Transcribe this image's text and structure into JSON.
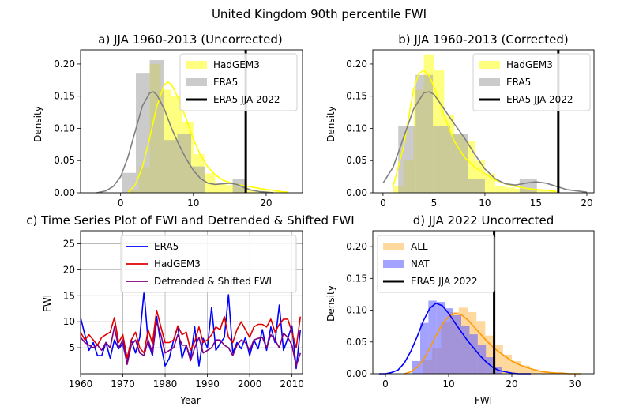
{
  "suptitle": "United Kingdom 90th percentile FWI",
  "colors": {
    "hadgem3": "#ffff00",
    "era5": "#808080",
    "era5_hist": "#a9a9a9",
    "obs_line": "#000000",
    "ts_era5": "#0000ff",
    "ts_hadgem3": "#e00000",
    "ts_detrended": "#800080",
    "all_hist": "#ffb84d",
    "all_kde": "#ff9900",
    "nat_hist": "#6666ff",
    "nat_kde": "#0000ff"
  },
  "chart_data": [
    {
      "id": "a",
      "type": "histogram-kde",
      "title": "a) JJA 1960-2013 (Uncorrected)",
      "xlabel": "",
      "ylabel": "Density",
      "xlim": [
        -5.5,
        25
      ],
      "ylim": [
        0,
        0.222
      ],
      "xticks": [
        0,
        10,
        20
      ],
      "yticks": [
        0.0,
        0.05,
        0.1,
        0.15,
        0.2
      ],
      "ytick_labels": [
        "0.00",
        "0.05",
        "0.10",
        "0.15",
        "0.20"
      ],
      "legend": [
        "HadGEM3",
        "ERA5",
        "ERA5 JJA 2022"
      ],
      "legend_position": "upper right",
      "observed_2022": 17.2,
      "hist_hadgem3": {
        "edges": [
          1,
          2.5,
          4,
          5.5,
          7,
          8.5,
          10,
          11.5,
          13,
          14.5,
          16,
          17.5,
          19,
          20.5,
          22
        ],
        "heights": [
          0.005,
          0.04,
          0.2,
          0.16,
          0.15,
          0.11,
          0.06,
          0.03,
          0.015,
          0.012,
          0.008,
          0.005,
          0.003,
          0.002
        ]
      },
      "hist_era5": {
        "edges": [
          0.2,
          2.1,
          4.0,
          5.9,
          7.8,
          9.7,
          11.6,
          13.5,
          15.4,
          17.3
        ],
        "heights": [
          0.031,
          0.185,
          0.206,
          0.082,
          0.092,
          0.041,
          0.0,
          0.0,
          0.021
        ]
      },
      "kde_hadgem3": {
        "x": [
          1,
          2,
          3,
          4,
          5,
          6,
          6.5,
          7,
          8,
          9,
          10,
          11,
          12,
          13,
          14,
          15,
          16,
          17,
          18,
          19,
          20,
          21,
          22,
          23
        ],
        "y": [
          0.0,
          0.012,
          0.04,
          0.085,
          0.135,
          0.168,
          0.172,
          0.168,
          0.145,
          0.115,
          0.083,
          0.058,
          0.04,
          0.028,
          0.02,
          0.016,
          0.013,
          0.011,
          0.009,
          0.007,
          0.005,
          0.004,
          0.002,
          0.001
        ]
      },
      "kde_era5": {
        "x": [
          -3.3,
          -2,
          -1,
          0,
          1,
          2,
          3,
          4,
          4.5,
          5,
          6,
          7,
          8,
          9,
          10,
          11,
          12,
          13,
          14,
          15,
          16,
          17,
          18,
          19,
          20,
          21
        ],
        "y": [
          0.0,
          0.003,
          0.01,
          0.025,
          0.055,
          0.095,
          0.135,
          0.155,
          0.157,
          0.152,
          0.13,
          0.1,
          0.075,
          0.053,
          0.035,
          0.022,
          0.015,
          0.013,
          0.014,
          0.015,
          0.013,
          0.008,
          0.004,
          0.002,
          0.001,
          0.0
        ]
      }
    },
    {
      "id": "b",
      "type": "histogram-kde",
      "title": "b) JJA 1960-2013 (Corrected)",
      "xlabel": "",
      "ylabel": "Density",
      "xlim": [
        -1,
        20.7
      ],
      "ylim": [
        0,
        0.222
      ],
      "xticks": [
        0,
        5,
        10,
        15,
        20
      ],
      "yticks": [
        0.0,
        0.05,
        0.1,
        0.15,
        0.2
      ],
      "ytick_labels": [
        "0.00",
        "0.05",
        "0.10",
        "0.15",
        "0.20"
      ],
      "legend": [
        "HadGEM3",
        "ERA5",
        "ERA5 JJA 2022"
      ],
      "legend_position": "upper right",
      "observed_2022": 17.2,
      "hist_hadgem3": {
        "edges": [
          1,
          2,
          3,
          4,
          5,
          6,
          7,
          8,
          9,
          10,
          11,
          12,
          13,
          14,
          15,
          16,
          17
        ],
        "heights": [
          0.01,
          0.05,
          0.16,
          0.215,
          0.19,
          0.12,
          0.09,
          0.08,
          0.05,
          0.03,
          0.01,
          0.008,
          0.006,
          0.005,
          0.004,
          0.002
        ]
      },
      "hist_era5": {
        "edges": [
          1.5,
          3.2,
          4.9,
          6.6,
          8.3,
          10.0,
          11.7,
          13.4,
          15.1
        ],
        "heights": [
          0.104,
          0.183,
          0.104,
          0.092,
          0.022,
          0.0,
          0.0,
          0.022
        ]
      },
      "kde_hadgem3": {
        "x": [
          1,
          2,
          3,
          3.5,
          4,
          4.5,
          5,
          6,
          7,
          8,
          9,
          10,
          11,
          12,
          13,
          14,
          15,
          16,
          17
        ],
        "y": [
          0.01,
          0.07,
          0.16,
          0.185,
          0.19,
          0.182,
          0.165,
          0.12,
          0.08,
          0.055,
          0.04,
          0.03,
          0.02,
          0.014,
          0.01,
          0.007,
          0.005,
          0.004,
          0.002
        ]
      },
      "kde_era5": {
        "x": [
          0,
          1,
          2,
          3,
          4,
          4.5,
          5,
          6,
          7,
          8,
          9,
          10,
          11,
          12,
          13,
          14,
          15,
          16,
          17,
          18,
          19,
          20
        ],
        "y": [
          0.015,
          0.04,
          0.085,
          0.13,
          0.155,
          0.157,
          0.153,
          0.13,
          0.107,
          0.085,
          0.06,
          0.037,
          0.022,
          0.014,
          0.012,
          0.015,
          0.017,
          0.015,
          0.01,
          0.005,
          0.003,
          0.001
        ]
      }
    },
    {
      "id": "c",
      "type": "line",
      "title": "c) Time Series Plot of FWI and Detrended & Shifted FWI",
      "xlabel": "Year",
      "ylabel": "FWI",
      "xlim": [
        1960,
        2012.5
      ],
      "ylim": [
        0,
        27.5
      ],
      "xticks": [
        1960,
        1970,
        1980,
        1990,
        2000,
        2010
      ],
      "yticks": [
        5,
        10,
        15,
        20,
        25
      ],
      "grid": true,
      "legend": [
        "ERA5",
        "HadGEM3",
        "Detrended & Shifted FWI"
      ],
      "legend_position": "upper center",
      "x": [
        1960,
        1961,
        1962,
        1963,
        1964,
        1965,
        1966,
        1967,
        1968,
        1969,
        1970,
        1971,
        1972,
        1973,
        1974,
        1975,
        1976,
        1977,
        1978,
        1979,
        1980,
        1981,
        1982,
        1983,
        1984,
        1985,
        1986,
        1987,
        1988,
        1989,
        1990,
        1991,
        1992,
        1993,
        1994,
        1995,
        1996,
        1997,
        1998,
        1999,
        2000,
        2001,
        2002,
        2003,
        2004,
        2005,
        2006,
        2007,
        2008,
        2009,
        2010,
        2011,
        2012
      ],
      "series": [
        {
          "name": "ERA5",
          "values": [
            10.8,
            7.5,
            4.5,
            6.0,
            3.5,
            3.5,
            6.0,
            3.0,
            6.5,
            4.8,
            5.8,
            2.0,
            6.5,
            4.0,
            7.0,
            15.8,
            6.0,
            3.5,
            11.0,
            5.5,
            1.5,
            3.0,
            6.5,
            9.0,
            3.0,
            5.5,
            2.8,
            9.0,
            1.5,
            6.8,
            5.0,
            12.8,
            4.5,
            5.8,
            7.0,
            15.2,
            4.0,
            6.0,
            4.8,
            7.0,
            3.5,
            6.5,
            4.8,
            8.5,
            4.5,
            9.0,
            6.0,
            13.2,
            4.5,
            6.8,
            9.2,
            1.0,
            8.5
          ]
        },
        {
          "name": "HadGEM3",
          "values": [
            8.0,
            6.5,
            7.5,
            6.5,
            5.5,
            7.0,
            7.5,
            8.0,
            10.8,
            6.0,
            7.5,
            3.0,
            6.5,
            8.0,
            5.0,
            4.0,
            8.5,
            5.8,
            12.2,
            9.0,
            6.0,
            6.0,
            6.5,
            9.2,
            7.5,
            8.0,
            4.5,
            6.2,
            9.0,
            6.0,
            6.5,
            7.5,
            9.0,
            8.5,
            11.0,
            7.0,
            6.0,
            8.5,
            10.0,
            8.5,
            7.0,
            9.0,
            9.5,
            9.5,
            9.0,
            10.5,
            8.0,
            9.5,
            10.5,
            10.5,
            8.0,
            5.0,
            11.0
          ]
        },
        {
          "name": "Detrended & Shifted FWI",
          "values": [
            7.0,
            6.0,
            5.5,
            5.0,
            5.5,
            4.5,
            6.0,
            5.0,
            9.0,
            5.0,
            6.5,
            1.8,
            5.5,
            6.5,
            4.0,
            3.5,
            6.5,
            4.0,
            10.0,
            7.5,
            4.0,
            4.5,
            5.0,
            7.5,
            5.5,
            5.5,
            2.5,
            5.0,
            7.0,
            4.0,
            4.5,
            5.0,
            6.5,
            6.5,
            5.5,
            5.0,
            3.5,
            5.5,
            6.5,
            6.0,
            4.5,
            6.5,
            6.8,
            7.0,
            5.0,
            7.5,
            6.5,
            5.0,
            7.8,
            7.0,
            5.5,
            1.5,
            4.0
          ]
        }
      ]
    },
    {
      "id": "d",
      "type": "histogram-kde",
      "title": "d) JJA 2022 Uncorrected",
      "xlabel": "FWI",
      "ylabel": "Density",
      "xlim": [
        -2,
        33
      ],
      "ylim": [
        0,
        0.225
      ],
      "xticks": [
        0,
        10,
        20,
        30
      ],
      "yticks": [
        0.0,
        0.05,
        0.1,
        0.15,
        0.2
      ],
      "ytick_labels": [
        "0.00",
        "0.05",
        "0.10",
        "0.15",
        "0.20"
      ],
      "legend": [
        "ALL",
        "NAT",
        "ERA5 JJA 2022"
      ],
      "legend_position": "upper left",
      "observed_2022": 17.2,
      "hist_all": {
        "edges": [
          6,
          7.4,
          8.8,
          10.2,
          11.6,
          13.0,
          14.4,
          15.8,
          17.2,
          18.6,
          20.0,
          21.4,
          22.8,
          24.2,
          25.6,
          27.0
        ],
        "heights": [
          0.022,
          0.04,
          0.082,
          0.097,
          0.104,
          0.097,
          0.083,
          0.06,
          0.045,
          0.03,
          0.02,
          0.013,
          0.007,
          0.004,
          0.002
        ]
      },
      "hist_nat": {
        "edges": [
          4.2,
          5.5,
          6.8,
          8.1,
          9.4,
          10.7,
          12.0,
          13.3,
          14.6,
          15.9,
          17.2,
          18.5
        ],
        "heights": [
          0.02,
          0.08,
          0.115,
          0.113,
          0.103,
          0.092,
          0.075,
          0.062,
          0.046,
          0.026,
          0.01
        ]
      },
      "kde_all": {
        "x": [
          3,
          4,
          5,
          6,
          7,
          8,
          9,
          10,
          11,
          12,
          13,
          14,
          15,
          16,
          17,
          18,
          19,
          20,
          21,
          22,
          23,
          24,
          25,
          26,
          27,
          28,
          29,
          30,
          31
        ],
        "y": [
          0.0,
          0.003,
          0.01,
          0.022,
          0.04,
          0.06,
          0.078,
          0.09,
          0.095,
          0.093,
          0.085,
          0.074,
          0.063,
          0.052,
          0.042,
          0.034,
          0.027,
          0.02,
          0.015,
          0.011,
          0.008,
          0.005,
          0.003,
          0.002,
          0.001,
          0.001,
          0.0,
          0.0,
          0.0
        ]
      },
      "kde_nat": {
        "x": [
          -1,
          0,
          1,
          2,
          3,
          4,
          5,
          6,
          7,
          8,
          9,
          10,
          11,
          12,
          13,
          14,
          15,
          16,
          17,
          18,
          19,
          20,
          21,
          22,
          23
        ],
        "y": [
          0.0,
          0.0,
          0.002,
          0.006,
          0.017,
          0.035,
          0.058,
          0.083,
          0.103,
          0.111,
          0.107,
          0.095,
          0.08,
          0.066,
          0.052,
          0.04,
          0.028,
          0.018,
          0.01,
          0.005,
          0.003,
          0.001,
          0.0,
          0.0,
          0.0
        ]
      }
    }
  ]
}
